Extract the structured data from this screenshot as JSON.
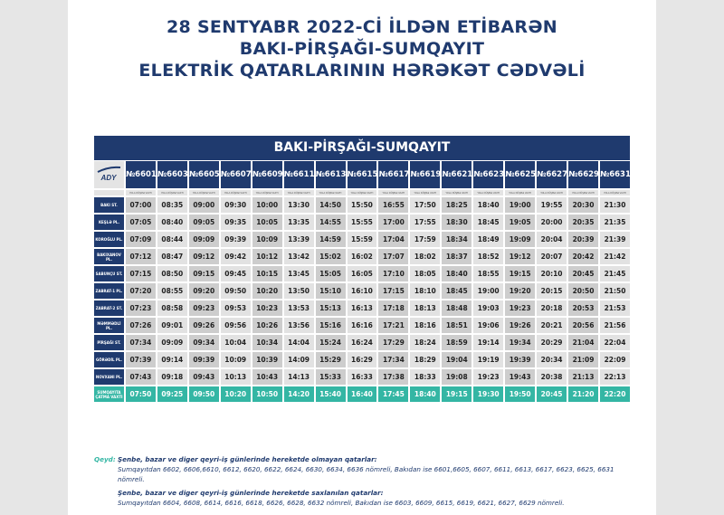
{
  "title": [
    "28 SENTYABR 2022-Cİ İLDƏN ETİBARƏN",
    "BAKI-PİRŞAĞI-SUMQAYIT",
    "ELEKTRİK QATARLARININ HƏRƏKƏT CƏDVƏLİ"
  ],
  "route": "BAKI-PİRŞAĞI-SUMQAYIT",
  "logo": "ADY",
  "sub_label": "YOLA DÜŞMƏ VAXTI",
  "trains": [
    "№6601",
    "№6603",
    "№6605",
    "№6607",
    "№6609",
    "№6611",
    "№6613",
    "№6615",
    "№6617",
    "№6619",
    "№6621",
    "№6623",
    "№6625",
    "№6627",
    "№6629",
    "№6631"
  ],
  "rows": [
    {
      "station": "BAKI ST.",
      "times": [
        "07:00",
        "08:35",
        "09:00",
        "09:30",
        "10:00",
        "13:30",
        "14:50",
        "15:50",
        "16:55",
        "17:50",
        "18:25",
        "18:40",
        "19:00",
        "19:55",
        "20:30",
        "21:30"
      ]
    },
    {
      "station": "KEŞLƏ PL.",
      "times": [
        "07:05",
        "08:40",
        "09:05",
        "09:35",
        "10:05",
        "13:35",
        "14:55",
        "15:55",
        "17:00",
        "17:55",
        "18:30",
        "18:45",
        "19:05",
        "20:00",
        "20:35",
        "21:35"
      ]
    },
    {
      "station": "KOROĞLU PL.",
      "times": [
        "07:09",
        "08:44",
        "09:09",
        "09:39",
        "10:09",
        "13:39",
        "14:59",
        "15:59",
        "17:04",
        "17:59",
        "18:34",
        "18:49",
        "19:09",
        "20:04",
        "20:39",
        "21:39"
      ]
    },
    {
      "station": "BAKIXANOV PL.",
      "times": [
        "07:12",
        "08:47",
        "09:12",
        "09:42",
        "10:12",
        "13:42",
        "15:02",
        "16:02",
        "17:07",
        "18:02",
        "18:37",
        "18:52",
        "19:12",
        "20:07",
        "20:42",
        "21:42"
      ]
    },
    {
      "station": "SABUNÇU ST.",
      "times": [
        "07:15",
        "08:50",
        "09:15",
        "09:45",
        "10:15",
        "13:45",
        "15:05",
        "16:05",
        "17:10",
        "18:05",
        "18:40",
        "18:55",
        "19:15",
        "20:10",
        "20:45",
        "21:45"
      ]
    },
    {
      "station": "ZABRAT-1 PL.",
      "times": [
        "07:20",
        "08:55",
        "09:20",
        "09:50",
        "10:20",
        "13:50",
        "15:10",
        "16:10",
        "17:15",
        "18:10",
        "18:45",
        "19:00",
        "19:20",
        "20:15",
        "20:50",
        "21:50"
      ]
    },
    {
      "station": "ZABRAT-2 ST.",
      "times": [
        "07:23",
        "08:58",
        "09:23",
        "09:53",
        "10:23",
        "13:53",
        "15:13",
        "16:13",
        "17:18",
        "18:13",
        "18:48",
        "19:03",
        "19:23",
        "20:18",
        "20:53",
        "21:53"
      ]
    },
    {
      "station": "MƏMMƏDLİ PL.",
      "times": [
        "07:26",
        "09:01",
        "09:26",
        "09:56",
        "10:26",
        "13:56",
        "15:16",
        "16:16",
        "17:21",
        "18:16",
        "18:51",
        "19:06",
        "19:26",
        "20:21",
        "20:56",
        "21:56"
      ]
    },
    {
      "station": "PİRŞAĞI ST.",
      "times": [
        "07:34",
        "09:09",
        "09:34",
        "10:04",
        "10:34",
        "14:04",
        "15:24",
        "16:24",
        "17:29",
        "18:24",
        "18:59",
        "19:14",
        "19:34",
        "20:29",
        "21:04",
        "22:04"
      ]
    },
    {
      "station": "GÖRƏDİL PL.",
      "times": [
        "07:39",
        "09:14",
        "09:39",
        "10:09",
        "10:39",
        "14:09",
        "15:29",
        "16:29",
        "17:34",
        "18:29",
        "19:04",
        "19:19",
        "19:39",
        "20:34",
        "21:09",
        "22:09"
      ]
    },
    {
      "station": "NOVXANI PL.",
      "times": [
        "07:43",
        "09:18",
        "09:43",
        "10:13",
        "10:43",
        "14:13",
        "15:33",
        "16:33",
        "17:38",
        "18:33",
        "19:08",
        "19:23",
        "19:43",
        "20:38",
        "21:13",
        "22:13"
      ]
    }
  ],
  "arrival": {
    "station": "SUMQAYITA ÇATMA VAXTI",
    "times": [
      "07:50",
      "09:25",
      "09:50",
      "10:20",
      "10:50",
      "14:20",
      "15:40",
      "16:40",
      "17:45",
      "18:40",
      "19:15",
      "19:30",
      "19:50",
      "20:45",
      "21:20",
      "22:20"
    ]
  },
  "notes": {
    "label": "Qeyd:",
    "h1": "Şenbe, bazar ve diger qeyri-iş günlerinde hereketde olmayan qatarlar:",
    "t1": "Sumqayıtdan 6602, 6606,6610, 6612, 6620, 6622, 6624, 6630, 6634, 6636 nömreli, Bakıdan ise 6601,6605, 6607, 6611, 6613, 6617, 6623, 6625, 6631 nömreli.",
    "h2": "Şenbe, bazar ve diger qeyri-iş günlerinde hereketde saxlanılan qatarlar:",
    "t2": "Sumqayıtdan 6604, 6608, 6614, 6616, 6618, 6626, 6628, 6632 nömreli, Bakıdan ise 6603, 6609, 6615, 6619, 6621, 6627, 6629 nömreli."
  }
}
